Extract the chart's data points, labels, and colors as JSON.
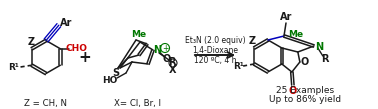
{
  "bg_color": "#ffffff",
  "black": "#1a1a1a",
  "red": "#cc0000",
  "green": "#007700",
  "blue": "#0000bb",
  "dark_blue": "#000088",
  "fig_width": 3.78,
  "fig_height": 1.09,
  "dpi": 100,
  "reaction_conditions": [
    "Et₃N (2.0 equiv)",
    "1,4-Dioxane",
    "120 ºC, 4 h"
  ],
  "bottom_left": "Z = CH, N",
  "bottom_mid": "X= Cl, Br, I",
  "bottom_right1": "25 Examples",
  "bottom_right2": "Up to 86% yield"
}
